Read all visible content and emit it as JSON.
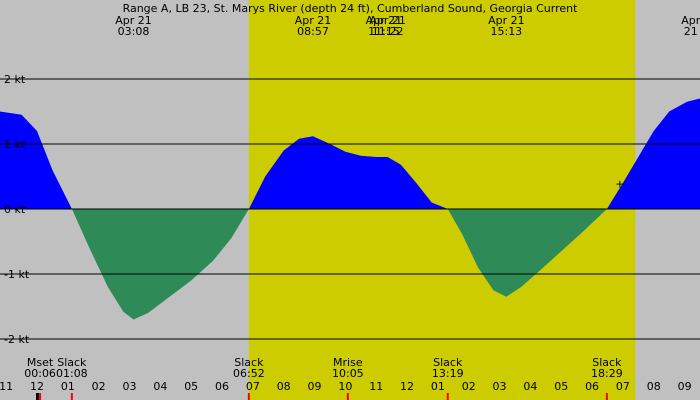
{
  "chart_data": {
    "type": "area",
    "title": "Range A, LB 23, St. Marys River (depth 24 ft), Cumberland Sound, Georgia Current",
    "unit": "kt",
    "x_unit": "hour of day (Apr 21); values past 24 are Apr 22",
    "xlim": [
      22.75,
      33.25
    ],
    "ylim": [
      -2.2,
      3.0
    ],
    "daylight": {
      "start": 6.87,
      "end": 19.4
    },
    "background": {
      "night": "#c0c0c0",
      "day": "#cccc00"
    },
    "colors": {
      "flood": "#0000ff",
      "ebb": "#2e8b57"
    },
    "y_ticks": [
      {
        "value": 2,
        "label": "2 kt"
      },
      {
        "value": 1,
        "label": "1 kt"
      },
      {
        "value": 0,
        "label": "0 kt"
      },
      {
        "value": -1,
        "label": "-1 kt"
      },
      {
        "value": -2,
        "label": "-2 kt"
      }
    ],
    "x_ticks": [
      {
        "value": -1,
        "label": "11"
      },
      {
        "value": 0,
        "label": "12"
      },
      {
        "value": 1,
        "label": "01"
      },
      {
        "value": 2,
        "label": "02"
      },
      {
        "value": 3,
        "label": "03"
      },
      {
        "value": 4,
        "label": "04"
      },
      {
        "value": 5,
        "label": "05"
      },
      {
        "value": 6,
        "label": "06"
      },
      {
        "value": 7,
        "label": "07"
      },
      {
        "value": 8,
        "label": "08"
      },
      {
        "value": 9,
        "label": "09"
      },
      {
        "value": 10,
        "label": "10"
      },
      {
        "value": 11,
        "label": "11"
      },
      {
        "value": 12,
        "label": "12"
      },
      {
        "value": 13,
        "label": "01"
      },
      {
        "value": 14,
        "label": "02"
      },
      {
        "value": 15,
        "label": "03"
      },
      {
        "value": 16,
        "label": "04"
      },
      {
        "value": 17,
        "label": "05"
      },
      {
        "value": 18,
        "label": "06"
      },
      {
        "value": 19,
        "label": "07"
      },
      {
        "value": 20,
        "label": "08"
      },
      {
        "value": 21,
        "label": "09"
      }
    ],
    "current_points": [
      [
        -1.2,
        1.5
      ],
      [
        -0.5,
        1.45
      ],
      [
        0.0,
        1.2
      ],
      [
        0.5,
        0.6
      ],
      [
        1.13,
        0.0
      ],
      [
        1.7,
        -0.6
      ],
      [
        2.3,
        -1.2
      ],
      [
        2.8,
        -1.58
      ],
      [
        3.13,
        -1.7
      ],
      [
        3.6,
        -1.6
      ],
      [
        4.3,
        -1.35
      ],
      [
        5.0,
        -1.1
      ],
      [
        5.7,
        -0.8
      ],
      [
        6.3,
        -0.45
      ],
      [
        6.87,
        0.0
      ],
      [
        7.4,
        0.5
      ],
      [
        8.0,
        0.9
      ],
      [
        8.5,
        1.08
      ],
      [
        8.95,
        1.12
      ],
      [
        9.5,
        1.0
      ],
      [
        10.0,
        0.88
      ],
      [
        10.5,
        0.82
      ],
      [
        11.0,
        0.8
      ],
      [
        11.37,
        0.8
      ],
      [
        11.8,
        0.68
      ],
      [
        12.3,
        0.4
      ],
      [
        12.8,
        0.1
      ],
      [
        13.32,
        0.0
      ],
      [
        13.8,
        -0.4
      ],
      [
        14.3,
        -0.9
      ],
      [
        14.8,
        -1.25
      ],
      [
        15.22,
        -1.35
      ],
      [
        15.7,
        -1.2
      ],
      [
        16.3,
        -0.95
      ],
      [
        17.0,
        -0.65
      ],
      [
        17.7,
        -0.35
      ],
      [
        18.48,
        0.0
      ],
      [
        19.0,
        0.4
      ],
      [
        19.5,
        0.8
      ],
      [
        20.0,
        1.2
      ],
      [
        20.5,
        1.5
      ],
      [
        21.08,
        1.65
      ],
      [
        21.5,
        1.7
      ]
    ],
    "peak_labels": [
      {
        "x": 3.13,
        "date": "Apr 21",
        "time": "03:08"
      },
      {
        "x": 8.95,
        "date": "Apr 21",
        "time": "08:57"
      },
      {
        "x": 11.25,
        "date": "Apr 21",
        "time": "11:15"
      },
      {
        "x": 11.37,
        "date": "Apr 21",
        "time": "11:22"
      },
      {
        "x": 15.22,
        "date": "Apr 21",
        "time": "15:13"
      },
      {
        "x": 21.2,
        "date": "Apr",
        "time": "21"
      }
    ],
    "event_labels": [
      {
        "x": 0.1,
        "name": "Mset",
        "time": "00:06"
      },
      {
        "x": 1.13,
        "name": "Slack",
        "time": "01:08"
      },
      {
        "x": 6.87,
        "name": "Slack",
        "time": "06:52"
      },
      {
        "x": 10.08,
        "name": "Mrise",
        "time": "10:05"
      },
      {
        "x": 13.32,
        "name": "Slack",
        "time": "13:19"
      },
      {
        "x": 18.48,
        "name": "Slack",
        "time": "18:29"
      }
    ],
    "red_markers": [
      0.1,
      1.13,
      6.87,
      10.08,
      13.32,
      18.48
    ],
    "black_markers": [
      0.0
    ],
    "annotation": {
      "text": "+",
      "x": 18.9,
      "y": 0.33
    }
  }
}
